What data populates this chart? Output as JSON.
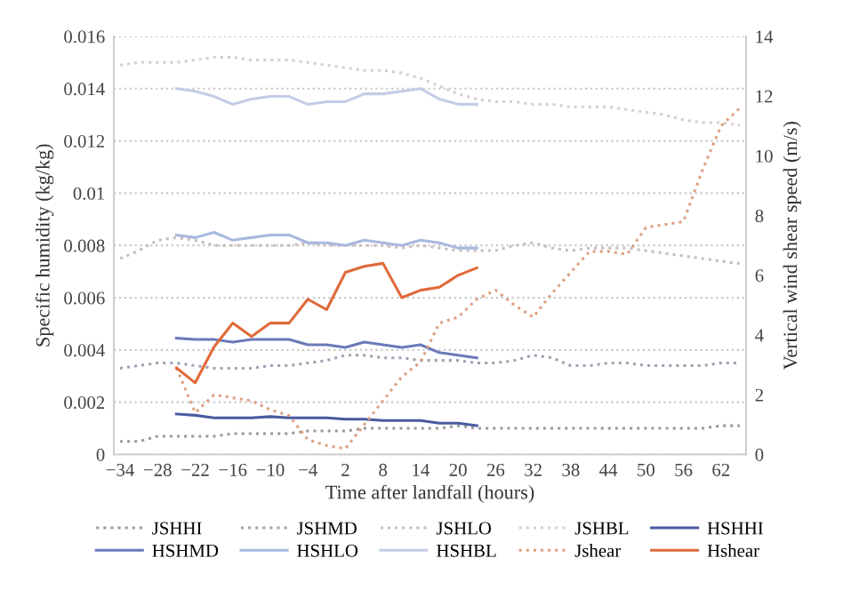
{
  "chart_data": {
    "type": "line",
    "xlabel": "Time after landfall (hours)",
    "ylabel": "Specific humidity (kg/kg)",
    "y2label": "Vertical wind shear speed (m/s)",
    "xlim": [
      -35,
      66
    ],
    "xticks": [
      {
        "value": -34,
        "label": "−34"
      },
      {
        "value": -28,
        "label": "−28"
      },
      {
        "value": -22,
        "label": "−22"
      },
      {
        "value": -16,
        "label": "−16"
      },
      {
        "value": -10,
        "label": "−10"
      },
      {
        "value": -4,
        "label": "−4"
      },
      2,
      8,
      14,
      20,
      26,
      32,
      38,
      44,
      50,
      56,
      62
    ],
    "ylim": [
      0,
      0.016
    ],
    "yticks": [
      {
        "value": 0,
        "label": "0"
      },
      {
        "value": 0.002,
        "label": "0.002"
      },
      {
        "value": 0.004,
        "label": "0.004"
      },
      {
        "value": 0.006,
        "label": "0.006"
      },
      {
        "value": 0.008,
        "label": "0.008"
      },
      {
        "value": 0.01,
        "label": "0.01"
      },
      {
        "value": 0.012,
        "label": "0.012"
      },
      {
        "value": 0.014,
        "label": "0.014"
      },
      {
        "value": 0.016,
        "label": "0.016"
      }
    ],
    "y2lim": [
      0,
      14
    ],
    "y2ticks": [
      0,
      2,
      4,
      6,
      8,
      10,
      12,
      14
    ],
    "grid": "y",
    "legend": "bottom",
    "series": [
      {
        "name": "JSHHI",
        "color": "#9a9a9a",
        "line_style": "dotted",
        "x": [
          -34,
          -31,
          -28,
          -25,
          -22,
          -19,
          -16,
          -13,
          -10,
          -7,
          -4,
          -1,
          2,
          5,
          8,
          11,
          14,
          17,
          20,
          23,
          26,
          29,
          32,
          35,
          38,
          41,
          44,
          47,
          50,
          53,
          56,
          59,
          62,
          65
        ],
        "values": [
          0.0005,
          0.0005,
          0.0007,
          0.0007,
          0.0007,
          0.0007,
          0.0008,
          0.0008,
          0.0008,
          0.0008,
          0.0009,
          0.0009,
          0.0009,
          0.001,
          0.001,
          0.001,
          0.001,
          0.001,
          0.0011,
          0.001,
          0.001,
          0.001,
          0.001,
          0.001,
          0.001,
          0.001,
          0.001,
          0.001,
          0.001,
          0.001,
          0.001,
          0.001,
          0.0011,
          0.0011
        ]
      },
      {
        "name": "JSHMD",
        "color": "#a0a0b4",
        "line_style": "dotted",
        "x": [
          -34,
          -31,
          -28,
          -25,
          -22,
          -19,
          -16,
          -13,
          -10,
          -7,
          -4,
          -1,
          2,
          5,
          8,
          11,
          14,
          17,
          20,
          23,
          26,
          29,
          32,
          35,
          38,
          41,
          44,
          47,
          50,
          53,
          56,
          59,
          62,
          65
        ],
        "values": [
          0.0033,
          0.0034,
          0.0035,
          0.0035,
          0.0034,
          0.0033,
          0.0033,
          0.0033,
          0.0034,
          0.0034,
          0.0035,
          0.0036,
          0.0038,
          0.0038,
          0.0037,
          0.0037,
          0.0036,
          0.0036,
          0.0036,
          0.0035,
          0.0035,
          0.0036,
          0.0038,
          0.0037,
          0.0034,
          0.0034,
          0.0035,
          0.0035,
          0.0034,
          0.0034,
          0.0034,
          0.0034,
          0.0035,
          0.0035
        ]
      },
      {
        "name": "JSHLO",
        "color": "#c8bcbc",
        "line_style": "dotted",
        "x": [
          -34,
          -31,
          -28,
          -25,
          -22,
          -19,
          -16,
          -13,
          -10,
          -7,
          -4,
          -1,
          2,
          5,
          8,
          11,
          14,
          17,
          20,
          23,
          26,
          29,
          32,
          35,
          38,
          41,
          44,
          47,
          50,
          53,
          56,
          59,
          62,
          65
        ],
        "values": [
          0.0075,
          0.0078,
          0.0082,
          0.0083,
          0.0082,
          0.008,
          0.008,
          0.008,
          0.008,
          0.008,
          0.0081,
          0.008,
          0.008,
          0.008,
          0.008,
          0.0079,
          0.008,
          0.0079,
          0.0078,
          0.0078,
          0.0078,
          0.008,
          0.0081,
          0.0079,
          0.0078,
          0.0079,
          0.0079,
          0.0079,
          0.0078,
          0.0077,
          0.0076,
          0.0075,
          0.0074,
          0.0073
        ]
      },
      {
        "name": "JSHBL",
        "color": "#dccccc",
        "line_style": "dotted",
        "x": [
          -34,
          -31,
          -28,
          -25,
          -22,
          -19,
          -16,
          -13,
          -10,
          -7,
          -4,
          -1,
          2,
          5,
          8,
          11,
          14,
          17,
          20,
          23,
          26,
          29,
          32,
          35,
          38,
          41,
          44,
          47,
          50,
          53,
          56,
          59,
          62,
          65
        ],
        "values": [
          0.0149,
          0.015,
          0.015,
          0.015,
          0.0151,
          0.0152,
          0.0152,
          0.0151,
          0.0151,
          0.0151,
          0.015,
          0.0149,
          0.0148,
          0.0147,
          0.0147,
          0.0146,
          0.0144,
          0.0141,
          0.0138,
          0.0136,
          0.0135,
          0.0135,
          0.0134,
          0.0134,
          0.0133,
          0.0133,
          0.0133,
          0.0132,
          0.0131,
          0.013,
          0.0128,
          0.0127,
          0.0127,
          0.0126
        ]
      },
      {
        "name": "HSHHI",
        "color": "#4a5aa0",
        "line_style": "solid",
        "x": [
          -25,
          -22,
          -19,
          -16,
          -13,
          -10,
          -7,
          -4,
          -1,
          2,
          5,
          8,
          11,
          14,
          17,
          20,
          23
        ],
        "values": [
          0.00155,
          0.0015,
          0.0014,
          0.0014,
          0.0014,
          0.00145,
          0.0014,
          0.0014,
          0.0014,
          0.00135,
          0.00135,
          0.0013,
          0.0013,
          0.0013,
          0.0012,
          0.0012,
          0.0011
        ]
      },
      {
        "name": "HSHMD",
        "color": "#6a7ab8",
        "line_style": "solid",
        "x": [
          -25,
          -22,
          -19,
          -16,
          -13,
          -10,
          -7,
          -4,
          -1,
          2,
          5,
          8,
          11,
          14,
          17,
          20,
          23
        ],
        "values": [
          0.00445,
          0.0044,
          0.0044,
          0.0043,
          0.0044,
          0.0044,
          0.0044,
          0.0042,
          0.0042,
          0.0041,
          0.0043,
          0.0042,
          0.0041,
          0.0042,
          0.0039,
          0.0038,
          0.0037
        ]
      },
      {
        "name": "HSHLO",
        "color": "#a8b8e0",
        "line_style": "solid",
        "x": [
          -25,
          -22,
          -19,
          -16,
          -13,
          -10,
          -7,
          -4,
          -1,
          2,
          5,
          8,
          11,
          14,
          17,
          20,
          23
        ],
        "values": [
          0.0084,
          0.0083,
          0.0085,
          0.0082,
          0.0083,
          0.0084,
          0.0084,
          0.0081,
          0.0081,
          0.008,
          0.0082,
          0.0081,
          0.008,
          0.0082,
          0.0081,
          0.0079,
          0.0079
        ]
      },
      {
        "name": "HSHBL",
        "color": "#c4cce6",
        "line_style": "solid",
        "x": [
          -25,
          -22,
          -19,
          -16,
          -13,
          -10,
          -7,
          -4,
          -1,
          2,
          5,
          8,
          11,
          14,
          17,
          20,
          23
        ],
        "values": [
          0.014,
          0.0139,
          0.0137,
          0.0134,
          0.0136,
          0.0137,
          0.0137,
          0.0134,
          0.0135,
          0.0135,
          0.0138,
          0.0138,
          0.0139,
          0.014,
          0.0136,
          0.0134,
          0.0134
        ]
      },
      {
        "name": "Jshear",
        "color": "#dca080",
        "line_style": "dotted",
        "axis": "y2",
        "x": [
          -25,
          -22,
          -19,
          -16,
          -13,
          -10,
          -7,
          -4,
          -1,
          2,
          5,
          8,
          11,
          14,
          17,
          20,
          23,
          26,
          29,
          32,
          35,
          38,
          41,
          44,
          47,
          50,
          53,
          56,
          59,
          62,
          65
        ],
        "values": [
          2.9,
          1.4,
          2.0,
          1.9,
          1.8,
          1.5,
          1.3,
          0.5,
          0.3,
          0.2,
          1.0,
          1.8,
          2.6,
          3.1,
          4.4,
          4.6,
          5.2,
          5.5,
          5.0,
          4.6,
          5.4,
          6.1,
          6.8,
          6.8,
          6.7,
          7.6,
          7.7,
          7.8,
          9.5,
          11.0,
          11.6
        ]
      },
      {
        "name": "Hshear",
        "color": "#e06a3a",
        "line_style": "solid",
        "axis": "y2",
        "x": [
          -25,
          -22,
          -19,
          -16,
          -13,
          -10,
          -7,
          -4,
          -1,
          2,
          5,
          8,
          11,
          14,
          17,
          20,
          23
        ],
        "values": [
          2.9,
          2.4,
          3.6,
          4.4,
          3.95,
          4.4,
          4.4,
          5.2,
          4.85,
          6.1,
          6.3,
          6.4,
          5.25,
          5.5,
          5.6,
          6.0,
          6.25
        ]
      }
    ]
  }
}
